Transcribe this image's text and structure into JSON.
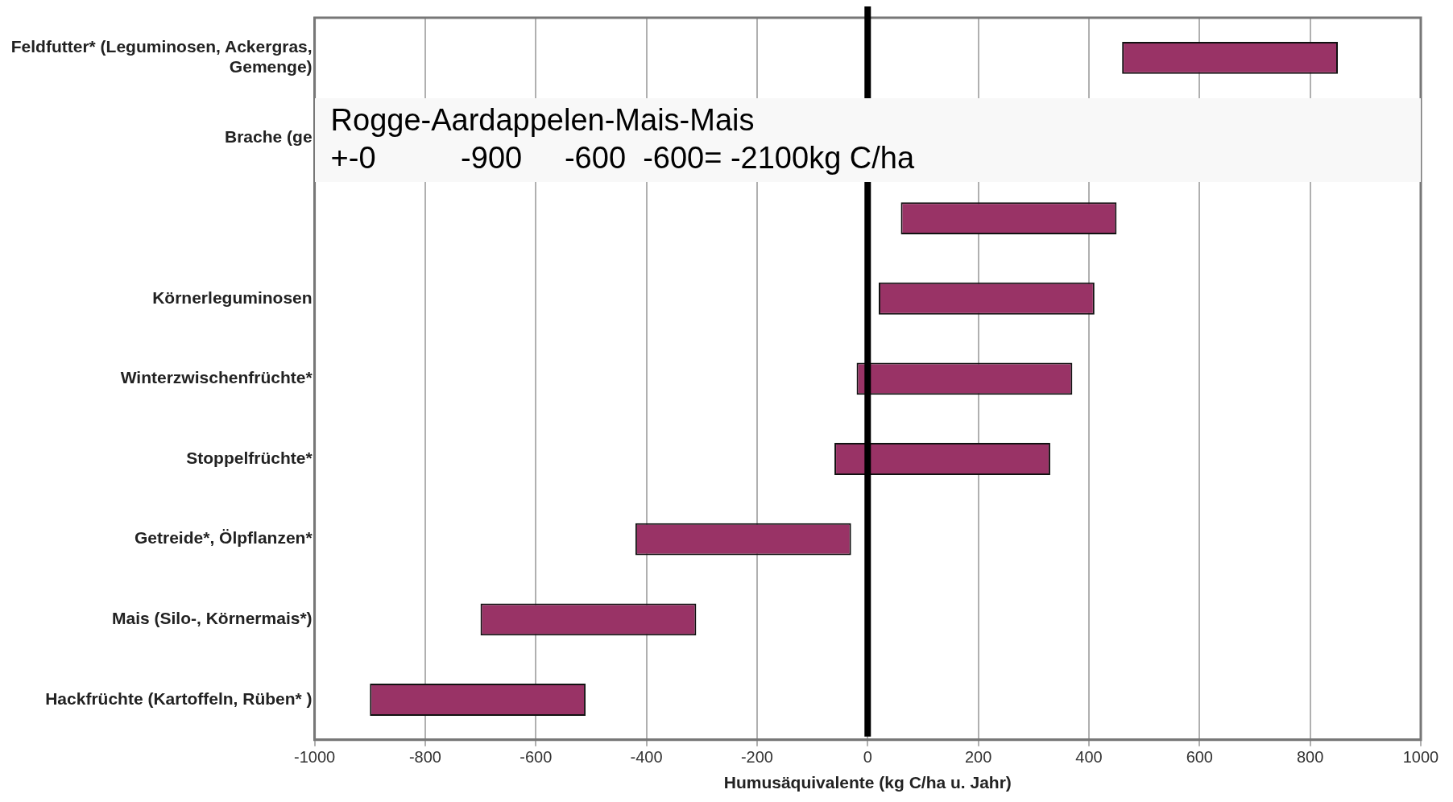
{
  "chart_data": {
    "type": "bar",
    "orientation": "horizontal",
    "xlabel": "Humusäquivalente (kg C/ha u. Jahr)",
    "categories": [
      "Feldfutter* (Leguminosen, Ackergras, Gemenge)",
      "Brache (ge",
      null,
      "Körnerleguminosen",
      "Winterzwischenfrüchte*",
      "Stoppelfrüchte*",
      "Getreide*, Ölpflanzen*",
      "Mais (Silo-, Körnermais*)",
      "Hackfrüchte (Kartoffeln, Rüben* )"
    ],
    "base": [
      460,
      null,
      60,
      20,
      -20,
      -60,
      -420,
      -700,
      -900
    ],
    "values": [
      390,
      null,
      390,
      390,
      390,
      390,
      390,
      390,
      390
    ],
    "color": "#993366",
    "xlim": [
      -1000,
      1000
    ],
    "xticks": [
      -1000,
      -800,
      -600,
      -400,
      -200,
      0,
      200,
      400,
      600,
      800,
      1000
    ],
    "grid": "x",
    "legend": false,
    "ref_lines": [
      {
        "axis": "x",
        "value": 0,
        "color": "#000000"
      }
    ],
    "annotations": [
      "Rogge-Aardappelen-Mais-Mais",
      "+-0          -900     -600  -600= -2100kg C/ha"
    ]
  }
}
